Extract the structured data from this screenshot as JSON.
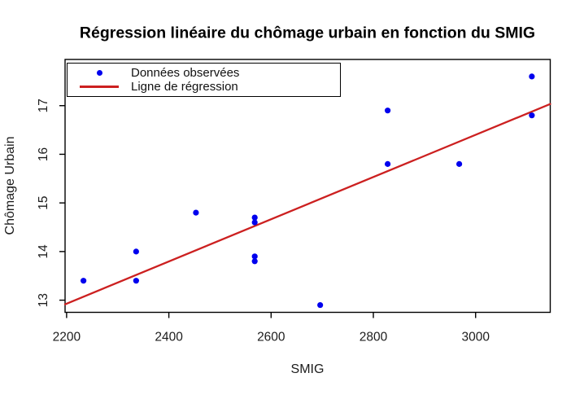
{
  "figure": {
    "background": "#ffffff"
  },
  "chart_data": {
    "type": "scatter",
    "title": "Régression linéaire du chômage urbain en fonction du SMIG",
    "xlabel": "SMIG",
    "ylabel": "Chômage Urbain",
    "xlim": [
      2197,
      3146
    ],
    "ylim": [
      12.75,
      17.95
    ],
    "xticks": [
      2200,
      2400,
      2600,
      2800,
      3000
    ],
    "yticks": [
      13,
      14,
      15,
      16,
      17
    ],
    "grid": false,
    "legend_position": "top-left",
    "points": [
      {
        "x": 2233,
        "y": 13.4
      },
      {
        "x": 2336,
        "y": 14.0
      },
      {
        "x": 2336,
        "y": 13.4
      },
      {
        "x": 2453,
        "y": 14.8
      },
      {
        "x": 2568,
        "y": 14.7
      },
      {
        "x": 2568,
        "y": 14.6
      },
      {
        "x": 2568,
        "y": 13.9
      },
      {
        "x": 2568,
        "y": 13.8
      },
      {
        "x": 2696,
        "y": 12.9
      },
      {
        "x": 2828,
        "y": 16.9
      },
      {
        "x": 2828,
        "y": 15.8
      },
      {
        "x": 2968,
        "y": 15.8
      },
      {
        "x": 3110,
        "y": 17.6
      },
      {
        "x": 3110,
        "y": 16.8
      }
    ],
    "regression": {
      "slope": 0.00434,
      "intercept": 3.38
    },
    "legend": [
      {
        "label": "Données observées",
        "marker": "point"
      },
      {
        "label": "Ligne de régression",
        "marker": "line"
      }
    ],
    "colors": {
      "points": "#0000ee",
      "regression": "#cc2020",
      "axis": "#000000",
      "tick_text": "#1c1c1c"
    }
  }
}
